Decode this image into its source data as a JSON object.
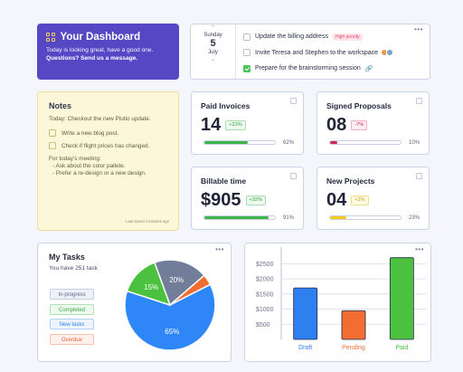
{
  "welcome": {
    "title": "Your Dashboard",
    "line1": "Today is looking great, have a good one.",
    "line2": "Questions? Send us a message."
  },
  "calendar": {
    "weekday": "Sunday",
    "day": "5",
    "month": "July"
  },
  "todo": {
    "items": [
      {
        "label": "Update the billing address",
        "badge": "High priority",
        "checked": false
      },
      {
        "label": "Invite Teresa and Stephen to the workspace",
        "checked": false
      },
      {
        "label": "Prepare for the brainstorming session",
        "checked": true
      }
    ]
  },
  "notes": {
    "title": "Notes",
    "intro": "Today: Checkout the new Plutio update.",
    "check1": "Write a new blog post.",
    "check2": "Check if flight prices has changed.",
    "meeting_heading": "For today's meeting:",
    "bullet1": "- Ask about the color pallete.",
    "bullet2": "- Prefer a re-design or a new design.",
    "saved": "Last saved 4 minutes ago"
  },
  "stats": {
    "paid_invoices": {
      "label": "Paid Invoices",
      "value": "14",
      "badge": "+23%",
      "progress": 62,
      "pct_label": "62%",
      "color": "#3eb548"
    },
    "signed_proposals": {
      "label": "Signed Proposals",
      "value": "08",
      "badge": "-7%",
      "progress": 10,
      "pct_label": "10%",
      "color": "#d3245a"
    },
    "billable_time": {
      "label": "Billable time",
      "value": "$905",
      "badge": "+32%",
      "progress": 91,
      "pct_label": "91%",
      "color": "#3eb548"
    },
    "new_projects": {
      "label": "New Projects",
      "value": "04",
      "badge": "+2%",
      "progress": 23,
      "pct_label": "23%",
      "color": "#f4cc17"
    }
  },
  "tasks": {
    "title": "My Tasks",
    "subtitle": "You have 251 task",
    "legend": [
      "In-progress",
      "Completed",
      "New tasks",
      "Overdue"
    ],
    "slices": [
      {
        "label": "20%",
        "value": 20,
        "color": "#727d99"
      },
      {
        "label": "",
        "value": 4,
        "color": "#f26d32"
      },
      {
        "label": "65%",
        "value": 65,
        "color": "#2f86f6"
      },
      {
        "label": "15%",
        "value": 15,
        "color": "#4cc13f"
      }
    ]
  },
  "chart_data": {
    "type": "bar",
    "categories": [
      "Draft",
      "Pending",
      "Paid"
    ],
    "values": [
      1700,
      950,
      2700
    ],
    "colors": [
      "#2f7ff0",
      "#f26d32",
      "#4cc13f"
    ],
    "ylim": [
      0,
      2750
    ],
    "yticks": [
      "$2500",
      "$2000",
      "$1500",
      "$1000",
      "$500"
    ],
    "grid": true
  },
  "colors": {
    "accent": "#5648c4"
  }
}
